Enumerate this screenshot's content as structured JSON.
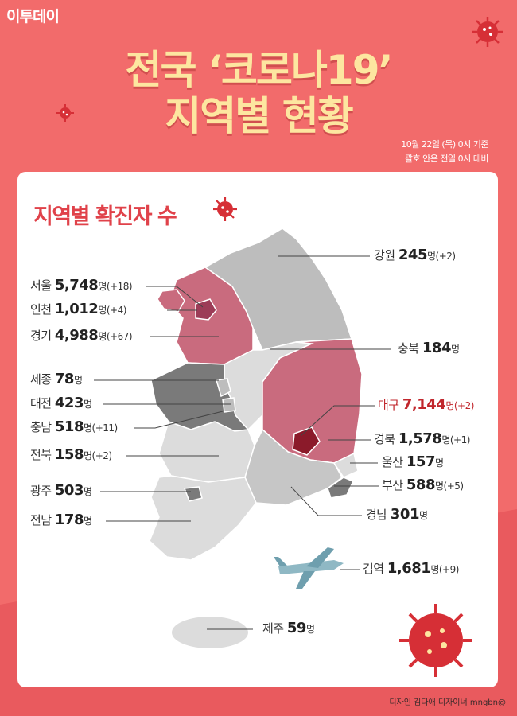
{
  "brand": "이투데이",
  "title_line1": "전국 ‘코로나19’",
  "title_line2": "지역별 현황",
  "subtitle_line1": "10월 22일 (목) 0시 기준",
  "subtitle_line2": "괄호 안은 전일 0시 대비",
  "section_title": "지역별 확진자 수",
  "credit": "디자인 김다애 디자이너 mngbn@",
  "unit": "명",
  "regions": [
    {
      "name": "강원",
      "count": "245",
      "delta": "(+2)"
    },
    {
      "name": "서울",
      "count": "5,748",
      "delta": "(+18)"
    },
    {
      "name": "인천",
      "count": "1,012",
      "delta": "(+4)"
    },
    {
      "name": "경기",
      "count": "4,988",
      "delta": "(+67)"
    },
    {
      "name": "충북",
      "count": "184",
      "delta": ""
    },
    {
      "name": "세종",
      "count": "78",
      "delta": ""
    },
    {
      "name": "대전",
      "count": "423",
      "delta": ""
    },
    {
      "name": "충남",
      "count": "518",
      "delta": "(+11)"
    },
    {
      "name": "대구",
      "count": "7,144",
      "delta": "(+2)"
    },
    {
      "name": "경북",
      "count": "1,578",
      "delta": "(+1)"
    },
    {
      "name": "전북",
      "count": "158",
      "delta": "(+2)"
    },
    {
      "name": "울산",
      "count": "157",
      "delta": ""
    },
    {
      "name": "부산",
      "count": "588",
      "delta": "(+5)"
    },
    {
      "name": "광주",
      "count": "503",
      "delta": ""
    },
    {
      "name": "경남",
      "count": "301",
      "delta": ""
    },
    {
      "name": "전남",
      "count": "178",
      "delta": ""
    },
    {
      "name": "검역",
      "count": "1,681",
      "delta": "(+9)"
    },
    {
      "name": "제주",
      "count": "59",
      "delta": ""
    }
  ],
  "colors": {
    "background": "#f26b6b",
    "title": "#fde6a0",
    "accent": "#e0424a",
    "highlight": "#c1272d",
    "map_light": "#dcdcdc",
    "map_mid": "#bdbdbd",
    "map_dark": "#7a7a7a",
    "map_pink": "#c96b7e",
    "map_deep": "#8b1a2a"
  },
  "icons": [
    "virus-icon",
    "airplane-icon"
  ]
}
